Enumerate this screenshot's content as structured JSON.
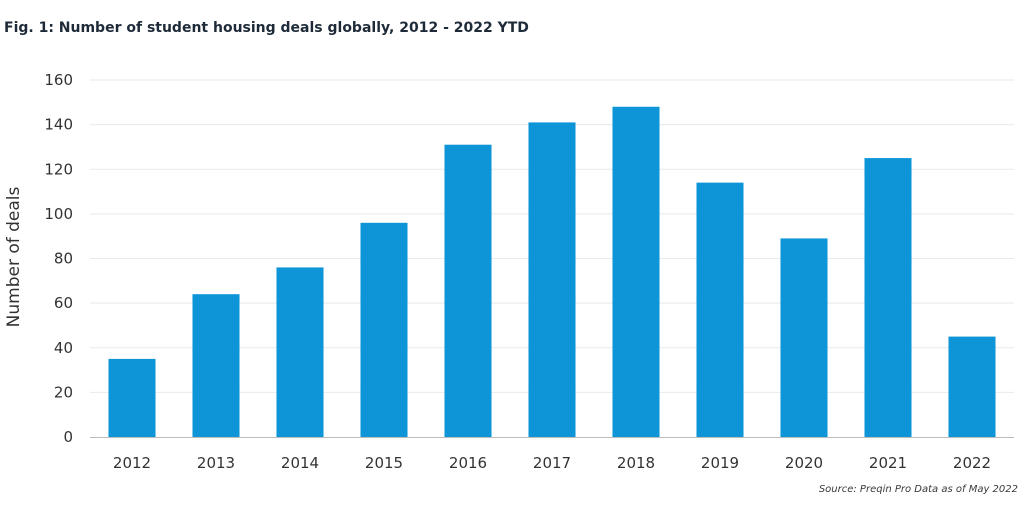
{
  "figure": {
    "title": "Fig. 1: Number of student housing deals globally, 2012 - 2022 YTD",
    "source": "Source: Preqin Pro Data as of May 2022"
  },
  "chart_data": {
    "type": "bar",
    "title": "Fig. 1: Number of student housing deals globally, 2012 - 2022 YTD",
    "xlabel": "",
    "ylabel": "Number of deals",
    "categories": [
      "2012",
      "2013",
      "2014",
      "2015",
      "2016",
      "2017",
      "2018",
      "2019",
      "2020",
      "2021",
      "2022"
    ],
    "values": [
      35,
      64,
      76,
      96,
      131,
      141,
      148,
      114,
      89,
      125,
      45
    ],
    "ylim": [
      0,
      160
    ],
    "yticks": [
      0,
      20,
      40,
      60,
      80,
      100,
      120,
      140,
      160
    ],
    "grid": true,
    "legend": "none",
    "bar_color": "#0d95d8"
  }
}
